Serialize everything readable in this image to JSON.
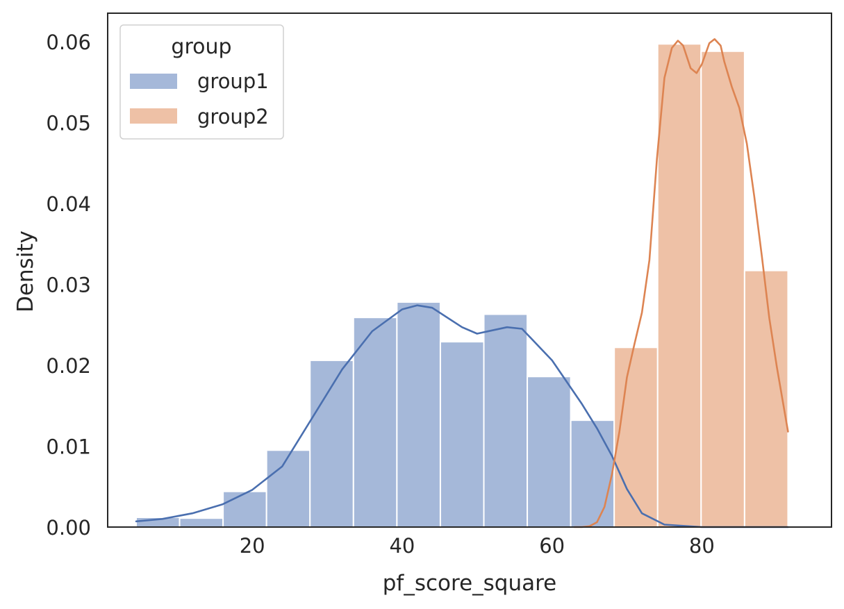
{
  "chart_data": {
    "type": "histogram",
    "xlabel": "pf_score_square",
    "ylabel": "Density",
    "xlim": [
      0.7,
      97.3
    ],
    "ylim": [
      0,
      0.0635
    ],
    "x_ticks": [
      20,
      40,
      60,
      80
    ],
    "y_ticks": [
      0.0,
      0.01,
      0.02,
      0.03,
      0.04,
      0.05,
      0.06
    ],
    "x_tick_labels": [
      "20",
      "40",
      "60",
      "80"
    ],
    "y_tick_labels": [
      "0.00",
      "0.01",
      "0.02",
      "0.03",
      "0.04",
      "0.05",
      "0.06"
    ],
    "grid": false,
    "legend": {
      "title": "group",
      "placement": "top-left",
      "entries": [
        "group1",
        "group2"
      ]
    },
    "series": [
      {
        "name": "group1",
        "bar_color": "#a5b8d9",
        "line_color": "#4a6faf",
        "bins": [
          {
            "x0": 4.5,
            "x1": 10.3,
            "density": 0.0012
          },
          {
            "x0": 10.3,
            "x1": 16.1,
            "density": 0.0011
          },
          {
            "x0": 16.1,
            "x1": 21.9,
            "density": 0.0044
          },
          {
            "x0": 21.9,
            "x1": 27.7,
            "density": 0.0095
          },
          {
            "x0": 27.7,
            "x1": 33.5,
            "density": 0.0206
          },
          {
            "x0": 33.5,
            "x1": 39.3,
            "density": 0.0259
          },
          {
            "x0": 39.3,
            "x1": 45.1,
            "density": 0.0278
          },
          {
            "x0": 45.1,
            "x1": 50.9,
            "density": 0.0229
          },
          {
            "x0": 50.9,
            "x1": 56.7,
            "density": 0.0263
          },
          {
            "x0": 56.7,
            "x1": 62.5,
            "density": 0.0186
          },
          {
            "x0": 62.5,
            "x1": 68.3,
            "density": 0.0132
          }
        ],
        "kde": {
          "x": [
            4.5,
            8,
            12,
            16,
            20,
            24,
            28,
            32,
            36,
            40,
            42,
            44,
            48,
            50,
            52,
            54,
            56,
            60,
            64,
            66,
            68,
            70,
            72,
            75,
            80,
            85,
            91.5
          ],
          "y": [
            0.0007,
            0.001,
            0.0017,
            0.0028,
            0.0046,
            0.0075,
            0.0135,
            0.0195,
            0.0242,
            0.0269,
            0.0274,
            0.0271,
            0.0247,
            0.0239,
            0.0243,
            0.0247,
            0.0245,
            0.0206,
            0.0152,
            0.0122,
            0.0088,
            0.0047,
            0.0017,
            0.0003,
            0.0,
            0.0,
            0.0
          ]
        }
      },
      {
        "name": "group2",
        "bar_color": "#eec1a6",
        "line_color": "#dd8452",
        "bins": [
          {
            "x0": 68.3,
            "x1": 74.1,
            "density": 0.0222
          },
          {
            "x0": 74.1,
            "x1": 79.9,
            "density": 0.0597
          },
          {
            "x0": 79.9,
            "x1": 85.7,
            "density": 0.0588
          },
          {
            "x0": 85.7,
            "x1": 91.5,
            "density": 0.0317
          }
        ],
        "kde": {
          "x": [
            63,
            64,
            65,
            66,
            67,
            68,
            69,
            70,
            71,
            72,
            73,
            74,
            75,
            76,
            76.8,
            77.5,
            78.5,
            79.3,
            80,
            81,
            81.7,
            82.5,
            83,
            84,
            85,
            86,
            87,
            88,
            89,
            90,
            91.5
          ],
          "y": [
            0.0,
            0.0,
            0.0001,
            0.0006,
            0.0025,
            0.0065,
            0.0118,
            0.0185,
            0.0226,
            0.0265,
            0.033,
            0.0455,
            0.0555,
            0.0592,
            0.0601,
            0.0595,
            0.0567,
            0.0561,
            0.0572,
            0.0598,
            0.0603,
            0.0595,
            0.0575,
            0.0544,
            0.0518,
            0.0474,
            0.0408,
            0.0335,
            0.0258,
            0.0198,
            0.0118
          ]
        }
      }
    ]
  }
}
